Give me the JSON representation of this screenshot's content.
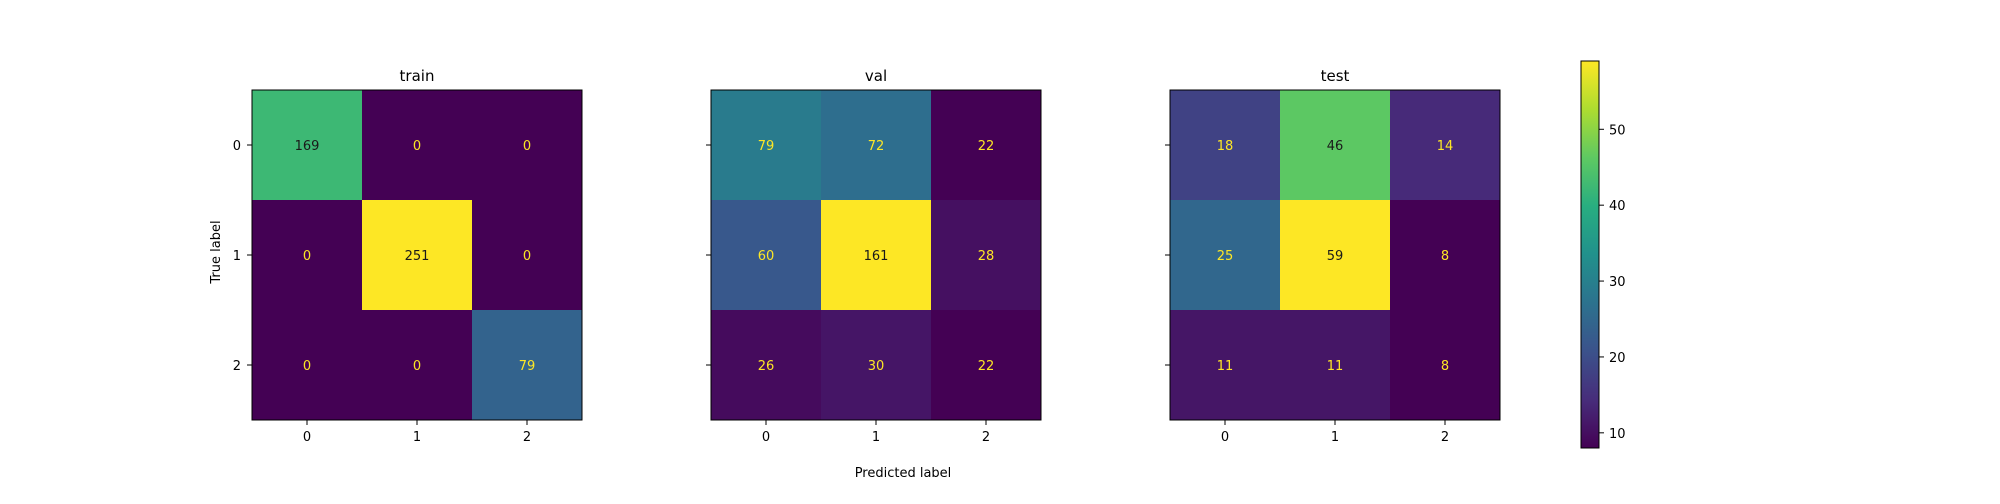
{
  "chart_data": [
    {
      "type": "heatmap",
      "title": "train",
      "x": [
        "0",
        "1",
        "2"
      ],
      "y": [
        "0",
        "1",
        "2"
      ],
      "values": [
        [
          169,
          0,
          0
        ],
        [
          0,
          251,
          0
        ],
        [
          0,
          0,
          79
        ]
      ],
      "vmin": 0,
      "vmax": 251
    },
    {
      "type": "heatmap",
      "title": "val",
      "x": [
        "0",
        "1",
        "2"
      ],
      "y": [
        "0",
        "1",
        "2"
      ],
      "values": [
        [
          79,
          72,
          22
        ],
        [
          60,
          161,
          28
        ],
        [
          26,
          30,
          22
        ]
      ],
      "vmin": 22,
      "vmax": 161
    },
    {
      "type": "heatmap",
      "title": "test",
      "x": [
        "0",
        "1",
        "2"
      ],
      "y": [
        "0",
        "1",
        "2"
      ],
      "values": [
        [
          18,
          46,
          14
        ],
        [
          25,
          59,
          8
        ],
        [
          11,
          11,
          8
        ]
      ],
      "vmin": 8,
      "vmax": 59
    }
  ],
  "colorbar": {
    "min": 8,
    "max": 59,
    "ticks": [
      10,
      20,
      30,
      40,
      50
    ],
    "colormap": "viridis"
  },
  "axis_labels": {
    "ylabel": "True label",
    "xlabel": "Predicted label"
  }
}
